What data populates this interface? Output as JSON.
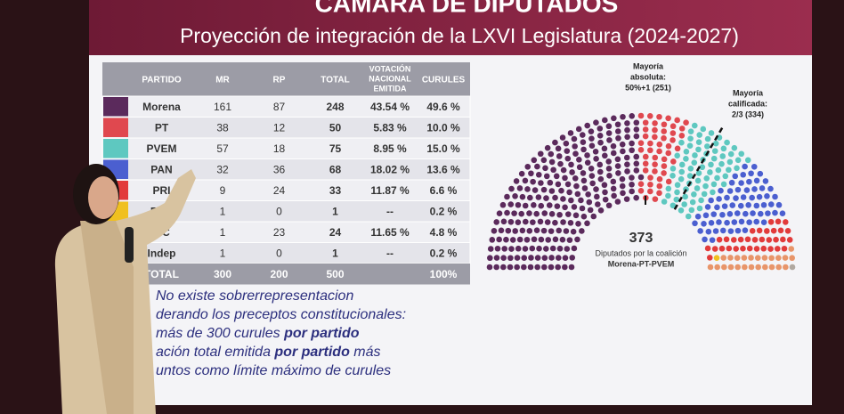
{
  "header": {
    "title": "CÁMARA DE DIPUTADOS",
    "subtitle": "Proyección de integración de la LXVI Legislatura (2024-2027)"
  },
  "table": {
    "columns": {
      "party": "PARTIDO",
      "mr": "MR",
      "rp": "RP",
      "total": "TOTAL",
      "vote": [
        "VOTACIÓN",
        "NACIONAL",
        "EMITIDA"
      ],
      "seats": "CURULES"
    },
    "rows": [
      {
        "party": "Morena",
        "color": "#5b2a5c",
        "mr": 161,
        "rp": 87,
        "total": 248,
        "vote": "43.54 %",
        "seats": "49.6 %"
      },
      {
        "party": "PT",
        "color": "#e0484f",
        "mr": 38,
        "rp": 12,
        "total": 50,
        "vote": "5.83 %",
        "seats": "10.0 %"
      },
      {
        "party": "PVEM",
        "color": "#5ec8c0",
        "mr": 57,
        "rp": 18,
        "total": 75,
        "vote": "8.95 %",
        "seats": "15.0 %"
      },
      {
        "party": "PAN",
        "color": "#4b5fd0",
        "mr": 32,
        "rp": 36,
        "total": 68,
        "vote": "18.02 %",
        "seats": "13.6 %"
      },
      {
        "party": "PRI",
        "color": "#e23b3b",
        "mr": 9,
        "rp": 24,
        "total": 33,
        "vote": "11.87 %",
        "seats": "6.6 %"
      },
      {
        "party": "PRD",
        "color": "#f0c020",
        "mr": 1,
        "rp": 0,
        "total": 1,
        "vote": "--",
        "seats": "0.2 %"
      },
      {
        "party": "MC",
        "color": "#e8956a",
        "mr": 1,
        "rp": 23,
        "total": 24,
        "vote": "11.65 %",
        "seats": "4.8 %"
      },
      {
        "party": "Indep",
        "color": "#b0a8a0",
        "mr": 1,
        "rp": 0,
        "total": 1,
        "vote": "--",
        "seats": "0.2 %"
      }
    ],
    "total": {
      "party": "TOTAL",
      "mr": 300,
      "rp": 200,
      "total": 500,
      "seats": "100%"
    }
  },
  "hemicycle": {
    "majority_absolute": [
      "Mayoría",
      "absoluta:",
      "50%+1 (251)"
    ],
    "majority_qualified": [
      "Mayoría",
      "calificada:",
      "2/3 (334)"
    ],
    "coalition_total": 373,
    "coalition_label": [
      "Diputados por la coalición",
      "Morena-PT-PVEM"
    ]
  },
  "notes": [
    [
      {
        "text": "No existe sobrerrepresentacion",
        "bold": false
      }
    ],
    [
      {
        "text": "derando los preceptos constitucionales:",
        "bold": false
      }
    ],
    [
      {
        "text": "más de 300 curules ",
        "bold": false
      },
      {
        "text": "por partido",
        "bold": true
      }
    ],
    [
      {
        "text": "ación total emitida ",
        "bold": false
      },
      {
        "text": "por partido",
        "bold": true
      },
      {
        "text": " más",
        "bold": false
      }
    ],
    [
      {
        "text": "untos como límite máximo de curules",
        "bold": false
      }
    ]
  ]
}
